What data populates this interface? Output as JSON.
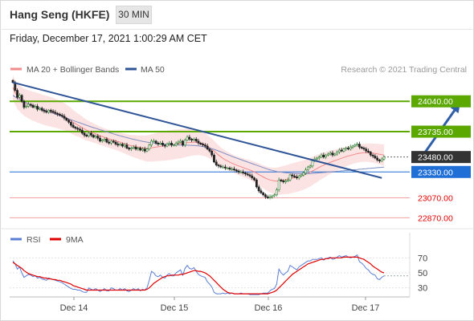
{
  "header": {
    "instrument": "Hang Seng (HKFE)",
    "interval": "30 MIN",
    "datetime": "Friday, December 17, 2021 1:00:29 AM CET"
  },
  "chart_data": [
    {
      "type": "candlestick",
      "legend": [
        {
          "label": "MA 20 + Bollinger Bands",
          "color": "#f28b8b"
        },
        {
          "label": "MA 50",
          "color": "#2f5597"
        }
      ],
      "legend_position": "top-left",
      "copyright": "Research © 2021 Trading Central",
      "x_ticks": [
        "Dec 14",
        "Dec 15",
        "Dec 16",
        "Dec 17"
      ],
      "y_range": [
        22800,
        24300
      ],
      "levels": [
        {
          "value": 24040,
          "label": "24040.00",
          "kind": "resistance",
          "color": "#5aa800"
        },
        {
          "value": 23735,
          "label": "23735.00",
          "kind": "resistance",
          "color": "#5aa800"
        },
        {
          "value": 23480,
          "label": "23480.00",
          "kind": "last",
          "color": "#333333"
        },
        {
          "value": 23330,
          "label": "23330.00",
          "kind": "pivot",
          "color": "#1f6fd6"
        },
        {
          "value": 23070,
          "label": "23070.00",
          "kind": "support",
          "color": "#e00000"
        },
        {
          "value": 22870,
          "label": "22870.00",
          "kind": "support",
          "color": "#e00000"
        }
      ],
      "trendline": {
        "from": [
          0,
          24230
        ],
        "to": [
          165,
          23270
        ],
        "color": "#2f5597"
      },
      "projection": {
        "from": [
          184,
          23470
        ],
        "to": [
          203,
          24020
        ],
        "color": "#2f5fa8"
      },
      "close": [
        24230,
        24150,
        24080,
        24100,
        24040,
        23980,
        23990,
        24010,
        24000,
        23980,
        23990,
        23960,
        23970,
        23950,
        23940,
        23930,
        23950,
        23940,
        23930,
        23920,
        23910,
        23900,
        23890,
        23870,
        23850,
        23830,
        23800,
        23780,
        23770,
        23760,
        23750,
        23720,
        23700,
        23690,
        23720,
        23700,
        23680,
        23690,
        23670,
        23640,
        23650,
        23660,
        23630,
        23620,
        23640,
        23630,
        23610,
        23600,
        23610,
        23590,
        23600,
        23570,
        23560,
        23570,
        23580,
        23560,
        23570,
        23550,
        23560,
        23540,
        23560,
        23600,
        23640,
        23640,
        23620,
        23610,
        23620,
        23600,
        23590,
        23610,
        23620,
        23600,
        23600,
        23620,
        23630,
        23640,
        23600,
        23650,
        23680,
        23660,
        23650,
        23660,
        23640,
        23620,
        23610,
        23600,
        23590,
        23560,
        23540,
        23500,
        23430,
        23400,
        23390,
        23380,
        23380,
        23370,
        23370,
        23360,
        23360,
        23350,
        23340,
        23330,
        23330,
        23320,
        23310,
        23300,
        23290,
        23270,
        23250,
        23180,
        23140,
        23120,
        23100,
        23080,
        23070,
        23080,
        23090,
        23100,
        23150,
        23250,
        23240,
        23230,
        23240,
        23250,
        23300,
        23290,
        23280,
        23270,
        23290,
        23300,
        23320,
        23350,
        23380,
        23390,
        23440,
        23460,
        23470,
        23480,
        23500,
        23480,
        23500,
        23510,
        23520,
        23500,
        23510,
        23530,
        23550,
        23540,
        23560,
        23570,
        23560,
        23580,
        23590,
        23600,
        23610,
        23580,
        23570,
        23560,
        23540,
        23530,
        23500,
        23490,
        23470,
        23450,
        23440,
        23460,
        23480
      ],
      "ma20": [
        24180,
        24130,
        24090,
        24070,
        24050,
        24030,
        24020,
        24010,
        24000,
        23990,
        23985,
        23975,
        23968,
        23960,
        23952,
        23945,
        23940,
        23935,
        23928,
        23920,
        23912,
        23904,
        23895,
        23885,
        23873,
        23860,
        23845,
        23830,
        23815,
        23802,
        23790,
        23776,
        23762,
        23750,
        23742,
        23732,
        23722,
        23714,
        23704,
        23694,
        23686,
        23678,
        23670,
        23662,
        23656,
        23650,
        23643,
        23636,
        23630,
        23622,
        23616,
        23608,
        23600,
        23594,
        23590,
        23585,
        23580,
        23575,
        23572,
        23568,
        23566,
        23568,
        23572,
        23576,
        23580,
        23583,
        23586,
        23590,
        23592,
        23596,
        23600,
        23602,
        23605,
        23608,
        23612,
        23615,
        23616,
        23620,
        23624,
        23626,
        23628,
        23630,
        23628,
        23625,
        23620,
        23612,
        23603,
        23590,
        23575,
        23560,
        23540,
        23520,
        23500,
        23482,
        23466,
        23452,
        23440,
        23428,
        23418,
        23408,
        23398,
        23390,
        23382,
        23374,
        23366,
        23358,
        23350,
        23340,
        23330,
        23318,
        23305,
        23292,
        23280,
        23268,
        23258,
        23250,
        23244,
        23240,
        23238,
        23240,
        23244,
        23248,
        23252,
        23256,
        23262,
        23268,
        23274,
        23280,
        23286,
        23292,
        23300,
        23308,
        23318,
        23328,
        23340,
        23352,
        23364,
        23376,
        23388,
        23398,
        23408,
        23418,
        23428,
        23436,
        23444,
        23452,
        23460,
        23468,
        23476,
        23484,
        23490,
        23496,
        23502,
        23508,
        23514,
        23518,
        23521,
        23523,
        23524,
        23524,
        23522,
        23520,
        23516,
        23512,
        23508,
        23504,
        23500
      ],
      "ma50": [
        24100,
        24085,
        24070,
        24058,
        24046,
        24035,
        24025,
        24015,
        24006,
        23997,
        23988,
        23979,
        23970,
        23961,
        23952,
        23943,
        23935,
        23927,
        23919,
        23911,
        23903,
        23895,
        23887,
        23879,
        23871,
        23863,
        23855,
        23847,
        23839,
        23831,
        23823,
        23815,
        23807,
        23799,
        23791,
        23783,
        23776,
        23769,
        23762,
        23755,
        23748,
        23741,
        23734,
        23727,
        23720,
        23713,
        23706,
        23699,
        23693,
        23687,
        23681,
        23675,
        23669,
        23663,
        23658,
        23653,
        23648,
        23643,
        23638,
        23634,
        23630,
        23627,
        23624,
        23621,
        23618,
        23616,
        23614,
        23612,
        23610,
        23608,
        23606,
        23604,
        23603,
        23602,
        23601,
        23600,
        23599,
        23598,
        23598,
        23598,
        23597,
        23596,
        23594,
        23592,
        23589,
        23585,
        23581,
        23576,
        23570,
        23564,
        23557,
        23549,
        23541,
        23532,
        23523,
        23514,
        23505,
        23496,
        23487,
        23478,
        23470,
        23462,
        23454,
        23446,
        23438,
        23430,
        23422,
        23414,
        23406,
        23398,
        23390,
        23382,
        23374,
        23366,
        23358,
        23352,
        23346,
        23340,
        23335,
        23331,
        23328,
        23325,
        23322,
        23320,
        23318,
        23316,
        23314,
        23313,
        23312,
        23311,
        23311,
        23311,
        23312,
        23313,
        23315,
        23317,
        23319,
        23321,
        23323,
        23325,
        23327,
        23329,
        23331,
        23333,
        23335,
        23337,
        23339,
        23341,
        23343,
        23345,
        23347,
        23349,
        23351,
        23353,
        23355,
        23357,
        23359,
        23361,
        23363,
        23365,
        23367,
        23369,
        23371,
        23373,
        23375,
        23377,
        23379
      ],
      "bb_upper_offset": 120
    },
    {
      "type": "line",
      "legend": [
        {
          "label": "RSI",
          "color": "#5b7fd4"
        },
        {
          "label": "9MA",
          "color": "#e00000"
        }
      ],
      "y_ticks": [
        70,
        50,
        30
      ],
      "y_range": [
        20,
        80
      ],
      "rsi": [
        66,
        62,
        55,
        58,
        50,
        44,
        46,
        48,
        47,
        45,
        46,
        43,
        44,
        42,
        41,
        40,
        43,
        42,
        41,
        40,
        39,
        38,
        37,
        35,
        33,
        31,
        29,
        28,
        28,
        27,
        27,
        25,
        24,
        24,
        30,
        28,
        27,
        29,
        27,
        25,
        27,
        29,
        26,
        26,
        30,
        29,
        27,
        27,
        29,
        27,
        29,
        26,
        25,
        27,
        29,
        27,
        29,
        26,
        28,
        27,
        30,
        40,
        52,
        50,
        46,
        45,
        47,
        44,
        43,
        47,
        49,
        46,
        46,
        50,
        52,
        54,
        47,
        56,
        60,
        56,
        55,
        57,
        52,
        48,
        46,
        45,
        44,
        38,
        35,
        31,
        24,
        22,
        22,
        22,
        23,
        22,
        23,
        22,
        23,
        22,
        22,
        22,
        23,
        22,
        22,
        22,
        21,
        21,
        21,
        21,
        21,
        22,
        23,
        23,
        23,
        26,
        28,
        29,
        35,
        55,
        50,
        47,
        50,
        52,
        60,
        58,
        56,
        54,
        58,
        60,
        62,
        64,
        66,
        66,
        68,
        68,
        68,
        69,
        70,
        67,
        69,
        70,
        71,
        68,
        69,
        71,
        73,
        71,
        72,
        73,
        71,
        70,
        71,
        72,
        74,
        65,
        63,
        60,
        56,
        54,
        50,
        48,
        47,
        42,
        41,
        44,
        46
      ],
      "ma9": [
        64,
        62,
        60,
        58,
        56,
        53,
        51,
        49,
        48,
        47,
        46,
        45,
        45,
        44,
        43,
        43,
        42,
        42,
        41,
        41,
        40,
        40,
        39,
        38,
        37,
        36,
        35,
        33,
        32,
        31,
        30,
        29,
        28,
        27,
        27,
        27,
        27,
        27,
        27,
        27,
        27,
        27,
        27,
        27,
        27,
        27,
        27,
        27,
        27,
        27,
        27,
        27,
        27,
        27,
        27,
        27,
        27,
        27,
        27,
        27,
        28,
        30,
        33,
        36,
        38,
        40,
        42,
        44,
        45,
        46,
        46,
        47,
        47,
        47,
        47,
        48,
        48,
        49,
        50,
        51,
        52,
        53,
        53,
        52,
        52,
        51,
        50,
        48,
        46,
        43,
        40,
        37,
        34,
        31,
        28,
        26,
        24,
        23,
        23,
        22,
        22,
        22,
        22,
        22,
        22,
        22,
        22,
        22,
        22,
        22,
        22,
        22,
        22,
        22,
        22,
        23,
        24,
        25,
        27,
        30,
        33,
        36,
        39,
        42,
        45,
        48,
        50,
        52,
        54,
        56,
        58,
        60,
        62,
        63,
        64,
        65,
        66,
        67,
        68,
        68,
        69,
        69,
        70,
        70,
        70,
        70,
        70,
        70,
        71,
        71,
        71,
        71,
        71,
        71,
        71,
        70,
        69,
        68,
        66,
        64,
        62,
        59,
        57,
        55,
        53,
        51,
        50
      ]
    }
  ]
}
